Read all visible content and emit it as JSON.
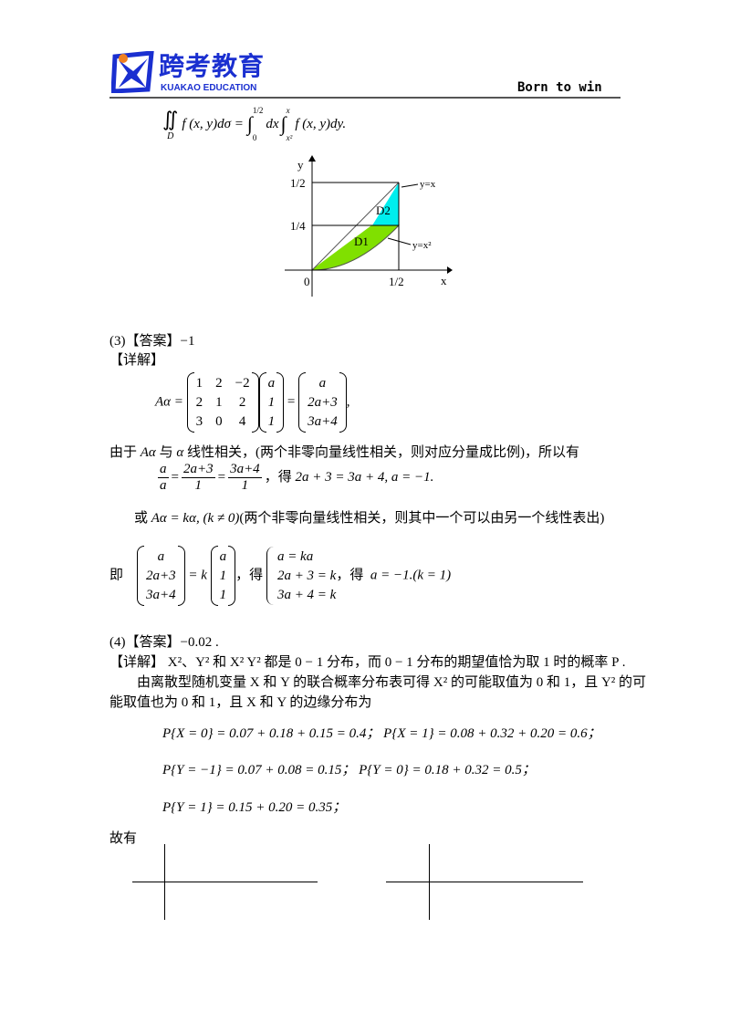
{
  "header": {
    "logo_cn": "跨考教育",
    "logo_en": "KUAKAO EDUCATION",
    "slogan": "Born to win",
    "brand_color": "#1a2fd0",
    "accent_color": "#f08020"
  },
  "integral": "∬ f(x, y)dσ = ∫₀^½ dx ∫_{x²}^{x} f(x, y)dy.",
  "integral_parts": {
    "lhs": "f (x, y)dσ =",
    "sub": "D",
    "int1_upper": "1/2",
    "int1_lower": "0",
    "mid": "dx",
    "int2_upper": "x",
    "int2_lower": "x²",
    "rhs": "f (x, y)dy."
  },
  "diagram": {
    "y_axis": "y",
    "x_axis": "x",
    "origin": "0",
    "x_tick": "1/2",
    "y_ticks": [
      "1/2",
      "1/4"
    ],
    "region1": "D1",
    "region2": "D2",
    "curve1": "y=x",
    "curve2": "y=x²",
    "region1_color": "#80e000",
    "region2_color": "#00eeee"
  },
  "part3": {
    "answer_label": "(3)【答案】",
    "answer": "−1",
    "detail_label": "【详解】",
    "matrix_lhs": "Aα =",
    "matrix_A": [
      [
        "1",
        "2",
        "−2"
      ],
      [
        "2",
        "1",
        "2"
      ],
      [
        "3",
        "0",
        "4"
      ]
    ],
    "vec1": [
      "a",
      "1",
      "1"
    ],
    "vec2": [
      "a",
      "2a+3",
      "3a+4"
    ],
    "tail": ",",
    "line1_a": "由于",
    "line1_m1": "Aα",
    "line1_b": "与",
    "line1_m2": "α",
    "line1_c": "线性相关，(两个非零向量线性相关，则对应分量成比例)，所以有",
    "frac": [
      [
        "a",
        "a"
      ],
      [
        "2a+3",
        "1"
      ],
      [
        "3a+4",
        "1"
      ]
    ],
    "frac_tail": "，得",
    "frac_result": "2a + 3 = 3a + 4, a = −1.",
    "or_label": "或",
    "or_eq": "Aα = kα, (k ≠ 0)",
    "or_note": "(两个非零向量线性相关，则其中一个可以由另一个线性表出)",
    "ji_label": "即",
    "ji_vec1": [
      "a",
      "2a+3",
      "3a+4"
    ],
    "ji_k": "= k",
    "ji_vec2": [
      "a",
      "1",
      "1"
    ],
    "de": "，得",
    "system": [
      "a = ka",
      "2a + 3 = k",
      "3a + 4 = k"
    ],
    "de2": "，得",
    "final": "a = −1.(k = 1)"
  },
  "part4": {
    "answer_label": "(4)【答案】",
    "answer": "−0.02 .",
    "line1": "【详解】 X²、Y² 和 X² Y² 都是 0 − 1 分布，而 0 − 1 分布的期望值恰为取 1 时的概率 P .",
    "line2": "由离散型随机变量 X 和 Y 的联合概率分布表可得 X² 的可能取值为 0 和 1，且 Y² 的可",
    "line3": "能取值也为 0 和 1，且 X 和 Y 的边缘分布为",
    "eq1": "P{X = 0} = 0.07 + 0.18 + 0.15 = 0.4；  P{X = 1} = 0.08 + 0.32 + 0.20 = 0.6；",
    "eq2": "P{Y = −1} = 0.07 + 0.08 = 0.15；  P{Y = 0} = 0.18 + 0.32 = 0.5；",
    "eq3": "P{Y = 1} = 0.15 + 0.20 = 0.35；",
    "therefore": "故有"
  }
}
